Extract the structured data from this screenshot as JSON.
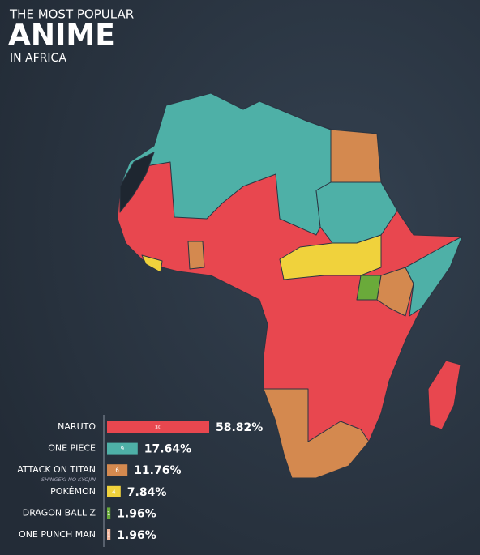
{
  "chart_data": {
    "type": "bar",
    "title_top": "THE MOST POPULAR",
    "title": "ANIME",
    "subtitle": "IN AFRICA",
    "categories": [
      "NARUTO",
      "ONE PIECE",
      "ATTACK ON TITAN",
      "POKÉMON",
      "DRAGON BALL Z",
      "ONE PUNCH MAN"
    ],
    "annotation": "SHINGEKI NO KYOJIN",
    "values": [
      30,
      9,
      6,
      4,
      1,
      1
    ],
    "shares": [
      58.82,
      17.64,
      11.76,
      7.84,
      1.96,
      1.96
    ],
    "share_labels": [
      "58.82%",
      "17.64%",
      "11.76%",
      "7.84%",
      "1.96%",
      "1.96%"
    ],
    "colors": [
      "#e8474f",
      "#4eb0a7",
      "#d4894f",
      "#f0d23c",
      "#6aaa3a",
      "#f2b9a0"
    ]
  }
}
